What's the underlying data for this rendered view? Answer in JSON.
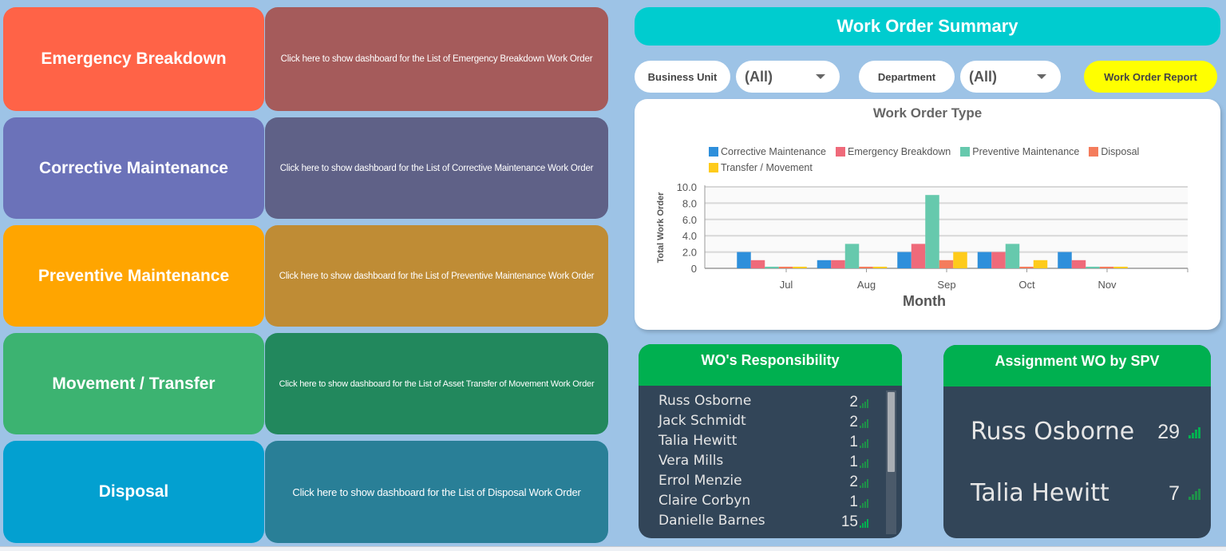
{
  "tiles": [
    {
      "title": "Emergency Breakdown",
      "description": "Click here to show dashboard for the List of Emergency Breakdown Work Order",
      "title_color": "#ff6347",
      "desc_color": "#a55b5b"
    },
    {
      "title": "Corrective Maintenance",
      "description": "Click here to show dashboard for the List of Corrective Maintenance Work Order",
      "title_color": "#6b72b9",
      "desc_color": "#5f6187"
    },
    {
      "title": "Preventive Maintenance",
      "description": "Click here to show dashboard for the List of Preventive Maintenance Work Order",
      "title_color": "#ffa500",
      "desc_color": "#bf8c35"
    },
    {
      "title": "Movement / Transfer",
      "description": "Click here to show dashboard for the List of Asset Transfer of Movement Work Order",
      "title_color": "#3cb371",
      "desc_color": "#22885d"
    },
    {
      "title": "Disposal",
      "description": "Click here to show dashboard for the List of Disposal Work Order",
      "title_color": "#03a0d0",
      "desc_color": "#297f97"
    }
  ],
  "header": {
    "title": "Work Order Summary"
  },
  "filters": {
    "business_unit": {
      "label": "Business Unit",
      "value": "(All)"
    },
    "department": {
      "label": "Department",
      "value": "(All)"
    },
    "report_button": "Work Order Report"
  },
  "chart_data": {
    "type": "bar",
    "title": "Work Order Type",
    "xlabel": "Month",
    "ylabel": "Total Work Order",
    "categories": [
      "Jul",
      "Aug",
      "Sep",
      "Oct",
      "Nov"
    ],
    "ylim": [
      0,
      10
    ],
    "yticks": [
      "0",
      "2.0",
      "4.0",
      "6.0",
      "8.0",
      "10.0"
    ],
    "grid": true,
    "legend_position": "top",
    "series": [
      {
        "name": "Corrective Maintenance",
        "color": "#2e8fdb",
        "values": [
          2,
          1,
          2,
          2,
          2
        ]
      },
      {
        "name": "Emergency Breakdown",
        "color": "#ef6a7a",
        "values": [
          1,
          1,
          3,
          2,
          1
        ]
      },
      {
        "name": "Preventive Maintenance",
        "color": "#66c9ad",
        "values": [
          0,
          3,
          9,
          3,
          0
        ]
      },
      {
        "name": "Disposal",
        "color": "#f47c5c",
        "values": [
          0,
          0,
          1,
          0,
          0
        ]
      },
      {
        "name": "Transfer / Movement",
        "color": "#fecb1b",
        "values": [
          0,
          0,
          2,
          1,
          0
        ]
      }
    ]
  },
  "responsibility": {
    "title": "WO's Responsibility",
    "rows": [
      {
        "name": "Russ Osborne",
        "value": "2"
      },
      {
        "name": "Jack Schmidt",
        "value": "2"
      },
      {
        "name": "Talia Hewitt",
        "value": "1"
      },
      {
        "name": "Vera Mills",
        "value": "1"
      },
      {
        "name": "Errol Menzie",
        "value": "2"
      },
      {
        "name": "Claire Corbyn",
        "value": "1"
      },
      {
        "name": "Danielle Barnes",
        "value": "15"
      }
    ]
  },
  "assignment": {
    "title": "Assignment WO by SPV",
    "rows": [
      {
        "name": "Russ Osborne",
        "value": "29"
      },
      {
        "name": "Talia Hewitt",
        "value": "7"
      }
    ]
  }
}
